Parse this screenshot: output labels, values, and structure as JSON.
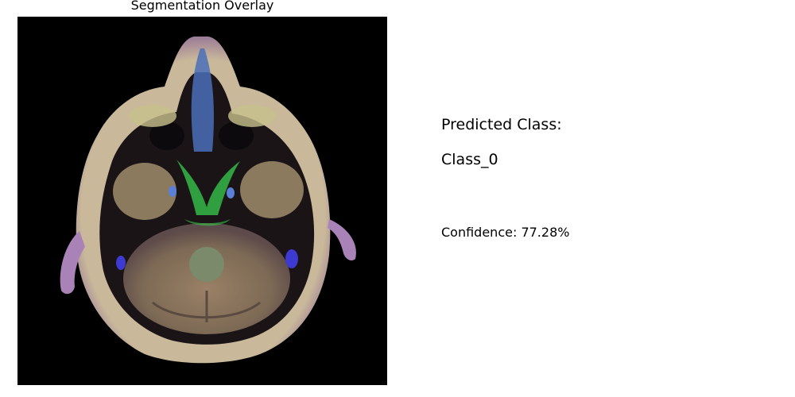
{
  "figure": {
    "panel_title": "Segmentation Overlay",
    "predicted_class_label": "Predicted Class:",
    "predicted_class_value": "Class_0",
    "confidence_text": "Confidence: 77.28%"
  },
  "image": {
    "background_color": "#000000",
    "skin_color": "#d9c7a8",
    "rim_color": "#8a5aa8",
    "tissue_color": "#8a7560",
    "highlight_color": "#35c24a",
    "accent_color": "#5b7fd6"
  }
}
